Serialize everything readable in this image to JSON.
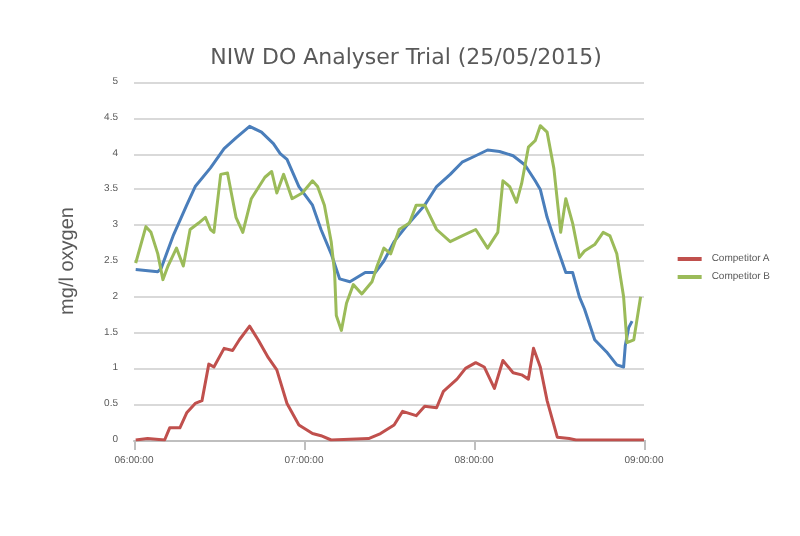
{
  "chart_data": {
    "type": "line",
    "title": "NIW DO Analyser Trial (25/05/2015)",
    "ylabel": "mg/l oxygen",
    "xlim": [
      6,
      9
    ],
    "xticks": [
      {
        "value": 6,
        "label": "06:00:00"
      },
      {
        "value": 7,
        "label": "07:00:00"
      },
      {
        "value": 8,
        "label": "08:00:00"
      },
      {
        "value": 9,
        "label": "09:00:00"
      }
    ],
    "ylim": [
      0,
      5
    ],
    "yticks": [
      0,
      0.5,
      1,
      1.5,
      2,
      2.5,
      3,
      3.5,
      4,
      4.5,
      5
    ],
    "grid": "y",
    "legend": "right",
    "marker": "none",
    "line_style": "solid",
    "series": [
      {
        "color": "#4a7ebb",
        "x": [
          6.01,
          6.14,
          6.16,
          6.23,
          6.31,
          6.36,
          6.45,
          6.53,
          6.6,
          6.68,
          6.75,
          6.82,
          6.86,
          6.9,
          6.97,
          7.05,
          7.1,
          7.16,
          7.21,
          7.27,
          7.36,
          7.42,
          7.47,
          7.53,
          7.6,
          7.71,
          7.78,
          7.86,
          7.93,
          8.01,
          8.08,
          8.15,
          8.23,
          8.3,
          8.36,
          8.39,
          8.43,
          8.49,
          8.54,
          8.58,
          8.62,
          8.65,
          8.71,
          8.78,
          8.84,
          8.88,
          8.89,
          8.91,
          8.93
        ],
        "values": [
          2.38,
          2.35,
          2.4,
          2.85,
          3.28,
          3.54,
          3.8,
          4.07,
          4.22,
          4.38,
          4.3,
          4.14,
          4.0,
          3.92,
          3.54,
          3.28,
          2.94,
          2.6,
          2.25,
          2.21,
          2.34,
          2.34,
          2.5,
          2.77,
          2.98,
          3.28,
          3.54,
          3.71,
          3.88,
          3.97,
          4.05,
          4.03,
          3.97,
          3.84,
          3.62,
          3.5,
          3.11,
          2.68,
          2.34,
          2.34,
          2.0,
          1.83,
          1.4,
          1.23,
          1.05,
          1.02,
          1.32,
          1.57,
          1.66
        ]
      },
      {
        "name": "Competitor A",
        "color": "#c0504d",
        "x": [
          6.01,
          6.08,
          6.18,
          6.21,
          6.27,
          6.31,
          6.36,
          6.4,
          6.44,
          6.47,
          6.53,
          6.58,
          6.62,
          6.68,
          6.73,
          6.79,
          6.84,
          6.9,
          6.97,
          7.05,
          7.1,
          7.16,
          7.38,
          7.45,
          7.53,
          7.58,
          7.66,
          7.71,
          7.78,
          7.82,
          7.9,
          7.95,
          8.01,
          8.06,
          8.12,
          8.17,
          8.23,
          8.28,
          8.32,
          8.35,
          8.39,
          8.43,
          8.49,
          8.56,
          8.6,
          9.0
        ],
        "values": [
          0,
          0.02,
          0,
          0.17,
          0.17,
          0.38,
          0.51,
          0.55,
          1.06,
          1.02,
          1.28,
          1.25,
          1.4,
          1.59,
          1.4,
          1.15,
          0.98,
          0.51,
          0.21,
          0.09,
          0.06,
          0,
          0.02,
          0.09,
          0.21,
          0.4,
          0.34,
          0.47,
          0.45,
          0.68,
          0.85,
          1.0,
          1.08,
          1.02,
          0.72,
          1.11,
          0.94,
          0.91,
          0.85,
          1.28,
          1.02,
          0.55,
          0.04,
          0.02,
          0,
          0
        ]
      },
      {
        "name": "Competitor B",
        "color": "#9bbb59",
        "x": [
          6.01,
          6.07,
          6.1,
          6.14,
          6.17,
          6.2,
          6.25,
          6.29,
          6.33,
          6.38,
          6.42,
          6.45,
          6.47,
          6.51,
          6.55,
          6.6,
          6.64,
          6.69,
          6.77,
          6.81,
          6.84,
          6.88,
          6.93,
          6.99,
          7.05,
          7.08,
          7.12,
          7.16,
          7.18,
          7.19,
          7.22,
          7.25,
          7.29,
          7.34,
          7.4,
          7.43,
          7.47,
          7.51,
          7.56,
          7.62,
          7.66,
          7.71,
          7.78,
          7.86,
          7.93,
          8.01,
          8.08,
          8.14,
          8.17,
          8.21,
          8.25,
          8.28,
          8.32,
          8.36,
          8.39,
          8.43,
          8.47,
          8.51,
          8.54,
          8.58,
          8.62,
          8.65,
          8.71,
          8.76,
          8.8,
          8.84,
          8.88,
          8.9,
          8.94,
          8.98
        ],
        "values": [
          2.47,
          2.98,
          2.9,
          2.6,
          2.24,
          2.43,
          2.68,
          2.43,
          2.94,
          3.03,
          3.11,
          2.94,
          2.9,
          3.71,
          3.73,
          3.11,
          2.9,
          3.37,
          3.67,
          3.75,
          3.45,
          3.71,
          3.37,
          3.45,
          3.62,
          3.54,
          3.28,
          2.77,
          2.34,
          1.74,
          1.53,
          1.91,
          2.17,
          2.04,
          2.21,
          2.43,
          2.68,
          2.6,
          2.94,
          3.03,
          3.28,
          3.28,
          2.94,
          2.77,
          2.85,
          2.94,
          2.68,
          2.9,
          3.62,
          3.54,
          3.32,
          3.58,
          4.09,
          4.18,
          4.39,
          4.3,
          3.79,
          2.9,
          3.37,
          3.03,
          2.55,
          2.64,
          2.73,
          2.9,
          2.85,
          2.6,
          2.0,
          1.36,
          1.4,
          2.0
        ]
      }
    ]
  }
}
